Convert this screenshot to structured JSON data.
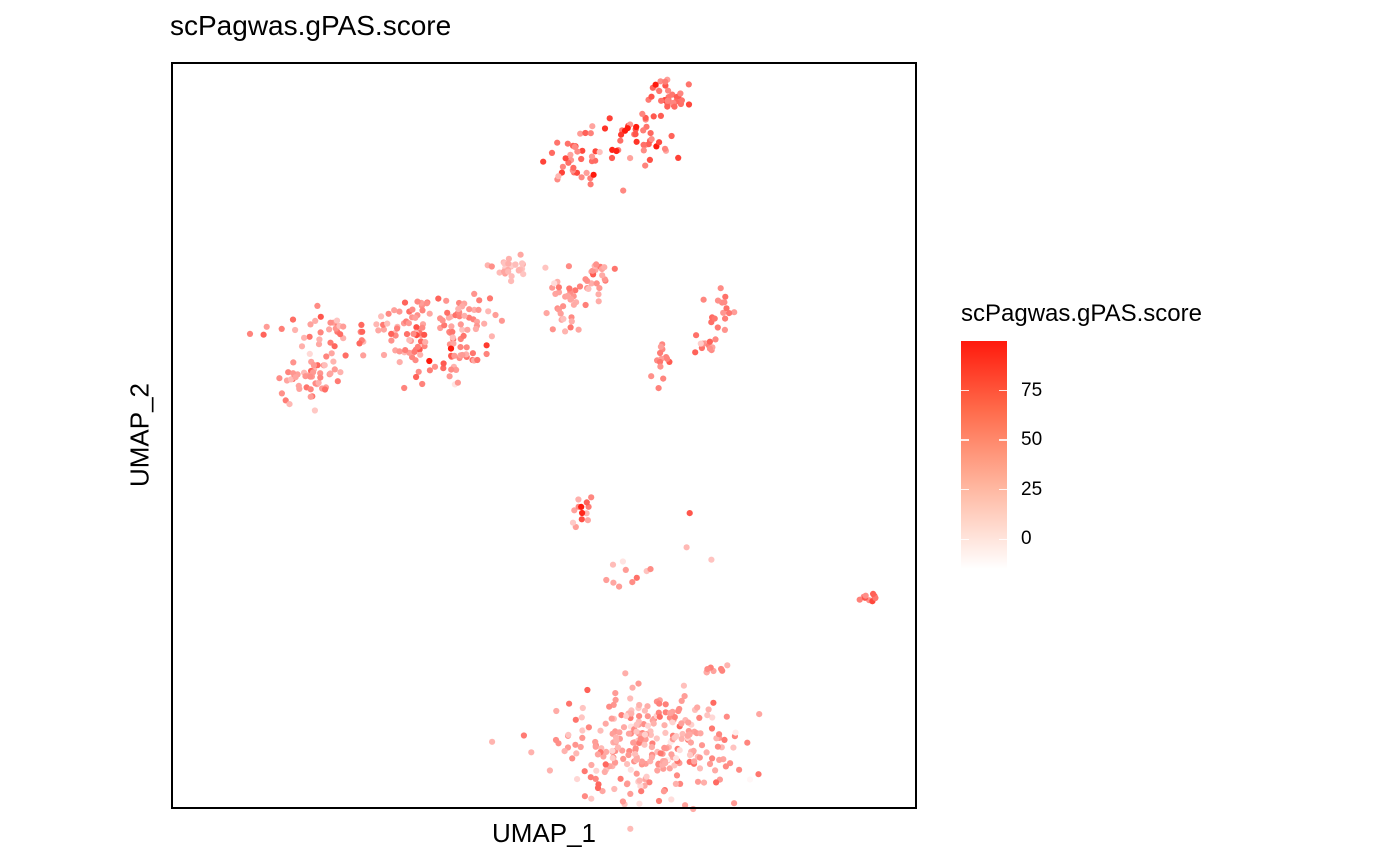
{
  "chart_data": {
    "type": "scatter",
    "title": "scPagwas.gPAS.score",
    "xlabel": "UMAP_1",
    "ylabel": "UMAP_2",
    "xlim": [
      -12,
      12
    ],
    "ylim": [
      -13,
      11
    ],
    "axis_ticks": false,
    "grid": false,
    "color_scale": {
      "name": "scPagwas.gPAS.score",
      "low_color": "#ffffff",
      "high_color": "#ff1a0d",
      "range": [
        -15,
        100
      ],
      "ticks": [
        0,
        25,
        50,
        75
      ]
    },
    "legend_position": "right",
    "clusters": [
      {
        "cx": -6.3,
        "cy": 2.3,
        "sx": 1.6,
        "sy": 0.35,
        "n": 60,
        "mean": 40,
        "spread": 14
      },
      {
        "cx": -3.1,
        "cy": 2.9,
        "sx": 0.9,
        "sy": 0.35,
        "n": 55,
        "mean": 42,
        "spread": 14
      },
      {
        "cx": -4.2,
        "cy": 1.8,
        "sx": 0.3,
        "sy": 0.55,
        "n": 30,
        "mean": 38,
        "spread": 14
      },
      {
        "cx": -2.6,
        "cy": 1.5,
        "sx": 0.45,
        "sy": 0.4,
        "n": 35,
        "mean": 42,
        "spread": 15
      },
      {
        "cx": -7.3,
        "cy": 1.0,
        "sx": 0.45,
        "sy": 0.28,
        "n": 30,
        "mean": 35,
        "spread": 12
      },
      {
        "cx": -7.9,
        "cy": 0.6,
        "sx": 0.35,
        "sy": 0.4,
        "n": 18,
        "mean": 35,
        "spread": 12
      },
      {
        "cx": -1.1,
        "cy": 4.5,
        "sx": 0.35,
        "sy": 0.25,
        "n": 28,
        "mean": 20,
        "spread": 10
      },
      {
        "cx": 0.6,
        "cy": 3.1,
        "sx": 0.35,
        "sy": 0.45,
        "n": 30,
        "mean": 35,
        "spread": 12
      },
      {
        "cx": 1.6,
        "cy": 4.1,
        "sx": 0.28,
        "sy": 0.35,
        "n": 25,
        "mean": 38,
        "spread": 12
      },
      {
        "cx": 1.0,
        "cy": 8.1,
        "sx": 0.5,
        "sy": 0.45,
        "n": 35,
        "mean": 55,
        "spread": 16
      },
      {
        "cx": 2.9,
        "cy": 8.7,
        "sx": 0.6,
        "sy": 0.45,
        "n": 40,
        "mean": 60,
        "spread": 18
      },
      {
        "cx": 4.1,
        "cy": 9.8,
        "sx": 0.35,
        "sy": 0.35,
        "n": 30,
        "mean": 50,
        "spread": 18
      },
      {
        "cx": 5.7,
        "cy": 3.0,
        "sx": 0.35,
        "sy": 0.35,
        "n": 16,
        "mean": 50,
        "spread": 12
      },
      {
        "cx": 5.3,
        "cy": 2.0,
        "sx": 0.3,
        "sy": 0.2,
        "n": 14,
        "mean": 45,
        "spread": 12
      },
      {
        "cx": 3.7,
        "cy": 1.4,
        "sx": 0.2,
        "sy": 0.3,
        "n": 14,
        "mean": 45,
        "spread": 12
      },
      {
        "cx": 1.2,
        "cy": -3.3,
        "sx": 0.2,
        "sy": 0.3,
        "n": 12,
        "mean": 45,
        "spread": 20
      },
      {
        "cx": 3.0,
        "cy": -5.3,
        "sx": 0.4,
        "sy": 0.3,
        "n": 10,
        "mean": 30,
        "spread": 12
      },
      {
        "cx": 10.4,
        "cy": -6.2,
        "sx": 0.2,
        "sy": 0.1,
        "n": 10,
        "mean": 55,
        "spread": 12
      },
      {
        "cx": 5.5,
        "cy": -8.6,
        "sx": 0.4,
        "sy": 0.18,
        "n": 8,
        "mean": 35,
        "spread": 12
      },
      {
        "cx": 3.4,
        "cy": -11.0,
        "sx": 1.35,
        "sy": 0.85,
        "n": 290,
        "mean": 30,
        "spread": 14
      }
    ],
    "singles": [
      {
        "x": -1.8,
        "y": 3.0,
        "v": 20
      },
      {
        "x": 4.7,
        "y": -3.5,
        "v": 70
      },
      {
        "x": 4.6,
        "y": -4.6,
        "v": 20
      },
      {
        "x": 5.4,
        "y": -5.0,
        "v": 15
      },
      {
        "x": 1.4,
        "y": -9.2,
        "v": 65
      },
      {
        "x": 2.3,
        "y": -9.3,
        "v": 35
      },
      {
        "x": -3.7,
        "y": 1.4,
        "v": 100
      },
      {
        "x": -3.0,
        "y": 1.8,
        "v": 100
      },
      {
        "x": 3.6,
        "y": 10.3,
        "v": 100
      },
      {
        "x": 1.2,
        "y": -3.3,
        "v": 100
      },
      {
        "x": 1.6,
        "y": 7.4,
        "v": 100
      },
      {
        "x": 2.7,
        "y": 8.9,
        "v": 100
      },
      {
        "x": 2.2,
        "y": 8.2,
        "v": 95
      }
    ]
  }
}
